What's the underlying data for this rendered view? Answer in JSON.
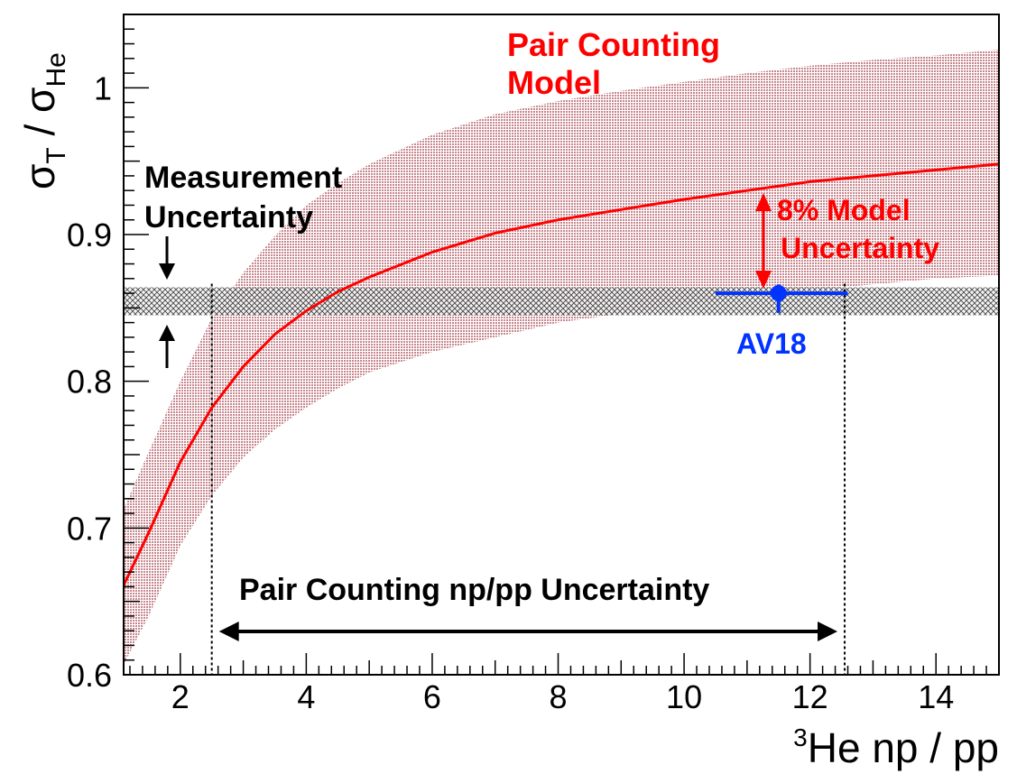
{
  "chart_data": {
    "type": "line",
    "xlabel": "He np / pp",
    "xlabel_superscript": "3",
    "ylabel_parts": {
      "sym1": "σ",
      "sub1": "T",
      "sep": " / ",
      "sym2": "σ",
      "sub2": "He"
    },
    "xlim": [
      1.1,
      15
    ],
    "ylim": [
      0.6,
      1.05
    ],
    "x_ticks": [
      2,
      4,
      6,
      8,
      10,
      12,
      14
    ],
    "y_ticks": [
      0.6,
      0.7,
      0.8,
      0.9,
      1.0
    ],
    "x_tick_labels": [
      "2",
      "4",
      "6",
      "8",
      "10",
      "12",
      "14"
    ],
    "y_tick_labels": [
      "0.6",
      "0.7",
      "0.8",
      "0.9",
      "1"
    ],
    "colors": {
      "model": "#ff0000",
      "band": "#c7888f",
      "av18": "#0033ff",
      "axis": "#000000"
    },
    "model_curve": {
      "name": "Pair Counting Model",
      "x": [
        1.1,
        1.5,
        2.0,
        2.5,
        3.0,
        3.5,
        4.0,
        4.5,
        5.0,
        6.0,
        7.0,
        8.0,
        9.0,
        10.0,
        11.0,
        12.0,
        13.0,
        14.0,
        15.0
      ],
      "y": [
        0.661,
        0.697,
        0.745,
        0.782,
        0.81,
        0.832,
        0.848,
        0.861,
        0.871,
        0.888,
        0.901,
        0.91,
        0.917,
        0.924,
        0.93,
        0.936,
        0.94,
        0.944,
        0.948
      ]
    },
    "model_band": {
      "name": "8% Model Uncertainty",
      "x": [
        1.1,
        1.5,
        2.0,
        2.5,
        3.0,
        3.5,
        4.0,
        4.5,
        5.0,
        6.0,
        7.0,
        8.0,
        9.0,
        10.0,
        11.0,
        12.0,
        13.0,
        14.0,
        15.0
      ],
      "y_low": [
        0.607,
        0.64,
        0.688,
        0.722,
        0.748,
        0.767,
        0.782,
        0.795,
        0.806,
        0.82,
        0.83,
        0.84,
        0.846,
        0.852,
        0.858,
        0.862,
        0.866,
        0.87,
        0.872
      ],
      "y_high": [
        0.713,
        0.752,
        0.8,
        0.843,
        0.874,
        0.899,
        0.92,
        0.935,
        0.948,
        0.968,
        0.982,
        0.991,
        0.998,
        1.004,
        1.01,
        1.015,
        1.019,
        1.022,
        1.026
      ]
    },
    "measurement_band": {
      "y_low": 0.845,
      "y_high": 0.864
    },
    "av18_point": {
      "label": "AV18",
      "x": 11.5,
      "y": 0.86,
      "x_err_low": 10.5,
      "x_err_high": 12.6,
      "y_err": 0.006
    },
    "np_pp_range": {
      "x_low": 2.5,
      "x_high": 12.55
    },
    "annotations": {
      "model_line1": "Pair Counting",
      "model_line2": "Model",
      "meas_line1": "Measurement",
      "meas_line2": "Uncertainty",
      "model_unc_line1": "8% Model",
      "model_unc_line2": "Uncertainty",
      "av18": "AV18",
      "np_pp": "Pair Counting np/pp Uncertainty"
    }
  }
}
